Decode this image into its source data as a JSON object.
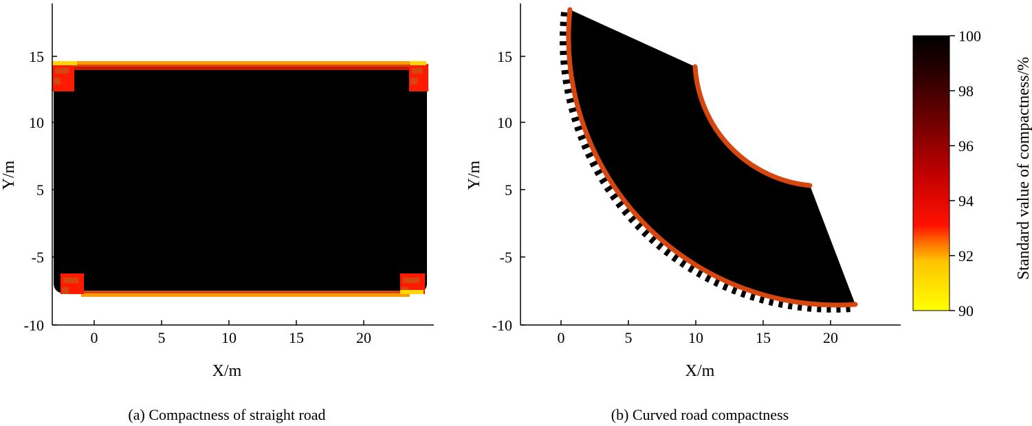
{
  "colors": {
    "high": "#000000",
    "dark_red": "#5a0000",
    "mid_red": "#c81a00",
    "red": "#ff1a00",
    "orange_red": "#d6460f",
    "orange": "#ff9a00",
    "yellow": "#ffff00",
    "background": "#ffffff"
  },
  "chart_data": [
    {
      "type": "heatmap",
      "caption": "(a) Compactness of straight road",
      "xlabel": "X/m",
      "ylabel": "Y/m",
      "xlim": [
        -3,
        25
      ],
      "ylim": [
        -10,
        19
      ],
      "xticks": [
        0,
        5,
        10,
        15,
        20
      ],
      "yticks": [
        {
          "value": -10,
          "label": "-10"
        },
        {
          "value": -5,
          "label": "-5"
        },
        {
          "value": 5,
          "label": "5"
        },
        {
          "value": 10,
          "label": "10"
        },
        {
          "value": 15,
          "label": "15"
        }
      ],
      "region": {
        "shape": "rounded-rectangle",
        "x_range": [
          -3,
          24.5
        ],
        "y_range": [
          -7.7,
          14.3
        ],
        "interior_value": 100,
        "edge_values": {
          "long_edges": [
            94,
            91
          ],
          "corners": [
            92,
            94
          ]
        }
      }
    },
    {
      "type": "heatmap",
      "caption": "(b) Curved road compactness",
      "xlabel": "X/m",
      "ylabel": "Y/m",
      "xlim": [
        -3,
        25
      ],
      "ylim": [
        -10,
        19
      ],
      "xticks": [
        0,
        5,
        10,
        15,
        20
      ],
      "yticks": [
        {
          "value": -10,
          "label": "-10"
        },
        {
          "value": -5,
          "label": "-5"
        },
        {
          "value": 5,
          "label": "5"
        },
        {
          "value": 10,
          "label": "10"
        },
        {
          "value": 15,
          "label": "15"
        }
      ],
      "region": {
        "shape": "annular-sector",
        "center": [
          16.6,
          10.5
        ],
        "inner_radius": 7.1,
        "outer_radius": 20.2,
        "angle_range_deg": [
          150,
          290
        ],
        "interior_value": 100,
        "edge_value": 94
      }
    }
  ],
  "colorbar": {
    "label": "Standard value of compactness/%",
    "min": 90,
    "max": 100,
    "ticks": [
      90,
      92,
      94,
      96,
      98,
      100
    ]
  }
}
